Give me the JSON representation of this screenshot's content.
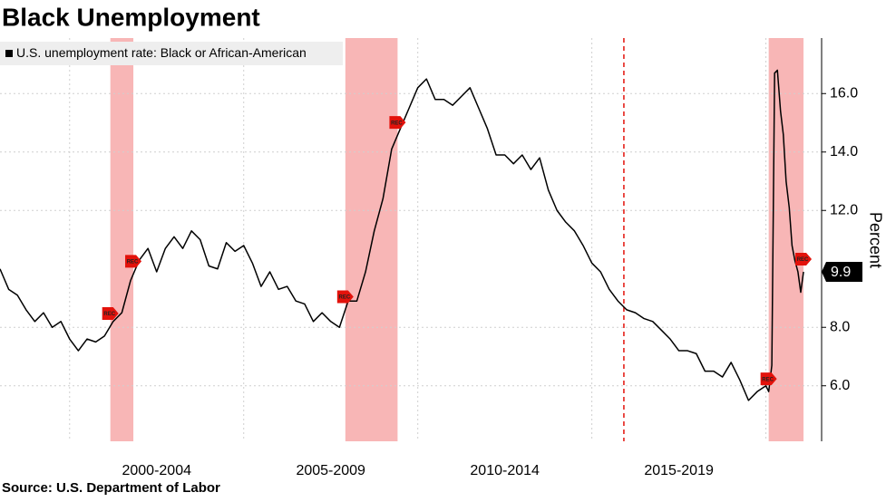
{
  "chart_data": {
    "type": "line",
    "title": "Black Unemployment",
    "source": "Source: U.S. Department of Labor",
    "ylabel": "Percent",
    "recession_label": "REC",
    "xlim": [
      1998,
      2021.6
    ],
    "ylim": [
      4.1,
      17.9
    ],
    "yticks": [
      {
        "value": 6,
        "label": "6.0"
      },
      {
        "value": 8,
        "label": "8.0"
      },
      {
        "value": 12,
        "label": "12.0"
      },
      {
        "value": 14,
        "label": "14.0"
      },
      {
        "value": 16,
        "label": "16.0"
      }
    ],
    "xticks": [
      {
        "value": 2002.5,
        "label": "2000-2004"
      },
      {
        "value": 2007.5,
        "label": "2005-2009"
      },
      {
        "value": 2012.5,
        "label": "2010-2014"
      },
      {
        "value": 2017.5,
        "label": "2015-2019"
      }
    ],
    "xgrid": [
      2000,
      2005,
      2010,
      2015,
      2020
    ],
    "grid": true,
    "recessions": [
      [
        2001.17,
        2001.83
      ],
      [
        2007.92,
        2009.42
      ],
      [
        2020.08,
        2021.08
      ]
    ],
    "marker_lines": [
      2015.92
    ],
    "x": [
      1998,
      1998.25,
      1998.5,
      1998.75,
      1999,
      1999.25,
      1999.5,
      1999.75,
      2000,
      2000.25,
      2000.5,
      2000.75,
      2001,
      2001.25,
      2001.5,
      2001.75,
      2002,
      2002.25,
      2002.5,
      2002.75,
      2003,
      2003.25,
      2003.5,
      2003.75,
      2004,
      2004.25,
      2004.5,
      2004.75,
      2005,
      2005.25,
      2005.5,
      2005.75,
      2006,
      2006.25,
      2006.5,
      2006.75,
      2007,
      2007.25,
      2007.5,
      2007.75,
      2008,
      2008.25,
      2008.5,
      2008.75,
      2009,
      2009.25,
      2009.5,
      2009.75,
      2010,
      2010.25,
      2010.5,
      2010.75,
      2011,
      2011.25,
      2011.5,
      2011.75,
      2012,
      2012.25,
      2012.5,
      2012.75,
      2013,
      2013.25,
      2013.5,
      2013.75,
      2014,
      2014.25,
      2014.5,
      2014.75,
      2015,
      2015.25,
      2015.5,
      2015.75,
      2016,
      2016.25,
      2016.5,
      2016.75,
      2017,
      2017.25,
      2017.5,
      2017.75,
      2018,
      2018.25,
      2018.5,
      2018.75,
      2019,
      2019.25,
      2019.5,
      2019.75,
      2020,
      2020.08,
      2020.17,
      2020.25,
      2020.33,
      2020.42,
      2020.5,
      2020.58,
      2020.67,
      2020.75,
      2020.83,
      2020.92,
      2021,
      2021.08
    ],
    "series": [
      {
        "name": "U.S. unemployment rate: Black or African-American",
        "color": "#000000",
        "values": [
          10.0,
          9.3,
          9.1,
          8.6,
          8.2,
          8.5,
          8.0,
          8.2,
          7.6,
          7.2,
          7.6,
          7.5,
          7.7,
          8.2,
          8.5,
          9.6,
          10.3,
          10.7,
          9.9,
          10.7,
          11.1,
          10.7,
          11.3,
          11.0,
          10.1,
          10.0,
          10.9,
          10.6,
          10.8,
          10.2,
          9.4,
          9.9,
          9.3,
          9.4,
          8.9,
          8.8,
          8.2,
          8.5,
          8.2,
          8.0,
          8.9,
          8.9,
          9.9,
          11.3,
          12.4,
          14.1,
          14.8,
          15.5,
          16.2,
          16.5,
          15.8,
          15.8,
          15.6,
          15.9,
          16.2,
          15.5,
          14.8,
          13.9,
          13.9,
          13.6,
          13.9,
          13.4,
          13.8,
          12.7,
          12.0,
          11.6,
          11.3,
          10.8,
          10.2,
          9.9,
          9.3,
          8.9,
          8.6,
          8.5,
          8.3,
          8.2,
          7.9,
          7.6,
          7.2,
          7.2,
          7.1,
          6.5,
          6.5,
          6.3,
          6.8,
          6.2,
          5.5,
          5.8,
          6.0,
          5.8,
          6.7,
          16.7,
          16.8,
          15.4,
          14.6,
          13.0,
          12.1,
          10.8,
          10.3,
          9.9,
          9.2,
          9.9
        ]
      }
    ]
  }
}
